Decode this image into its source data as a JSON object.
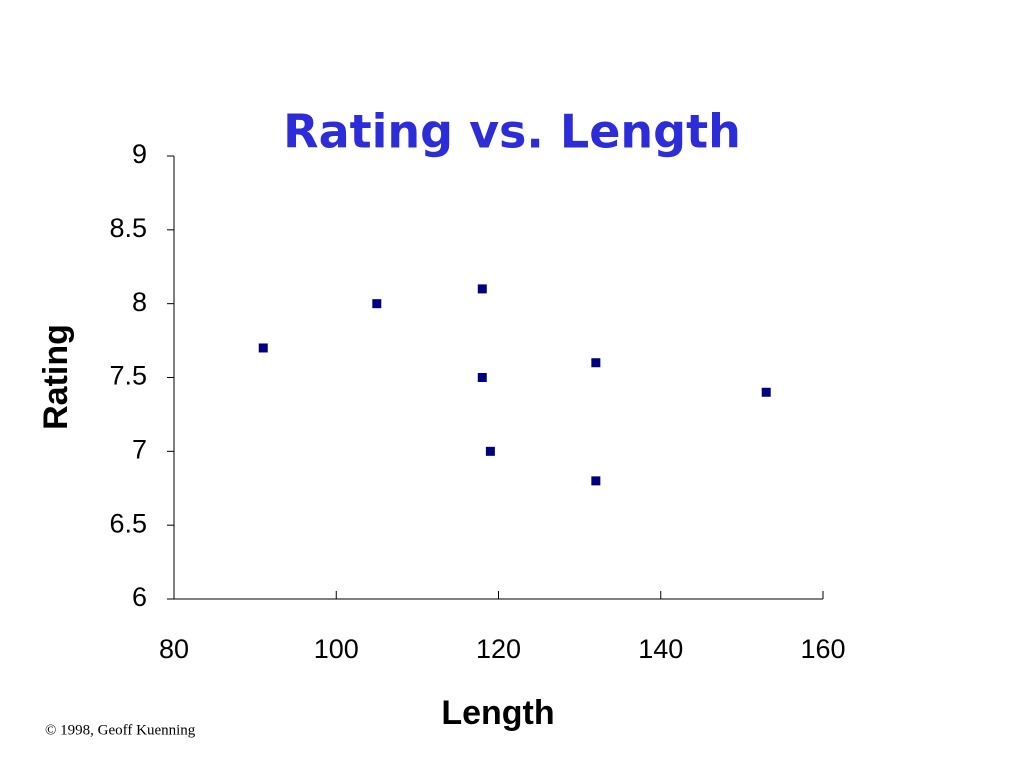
{
  "chart_data": {
    "type": "scatter",
    "title": "Rating vs. Length",
    "x_label": "Length",
    "y_label": "Rating",
    "series": [
      {
        "name": "Rating",
        "color": "#000080",
        "x": [
          91,
          105,
          118,
          118,
          119,
          132,
          132,
          153
        ],
        "values": [
          7.7,
          8.0,
          8.1,
          7.5,
          7.0,
          7.6,
          6.8,
          7.4
        ]
      }
    ],
    "xlim": [
      80,
      160
    ],
    "xticks": [
      80,
      100,
      120,
      140,
      160
    ],
    "ylim": [
      6,
      9
    ],
    "yticks": [
      9,
      8.5,
      8,
      7.5,
      7,
      6.5,
      6
    ],
    "grid": false
  },
  "footer": "© 1998, Geoff Kuenning"
}
